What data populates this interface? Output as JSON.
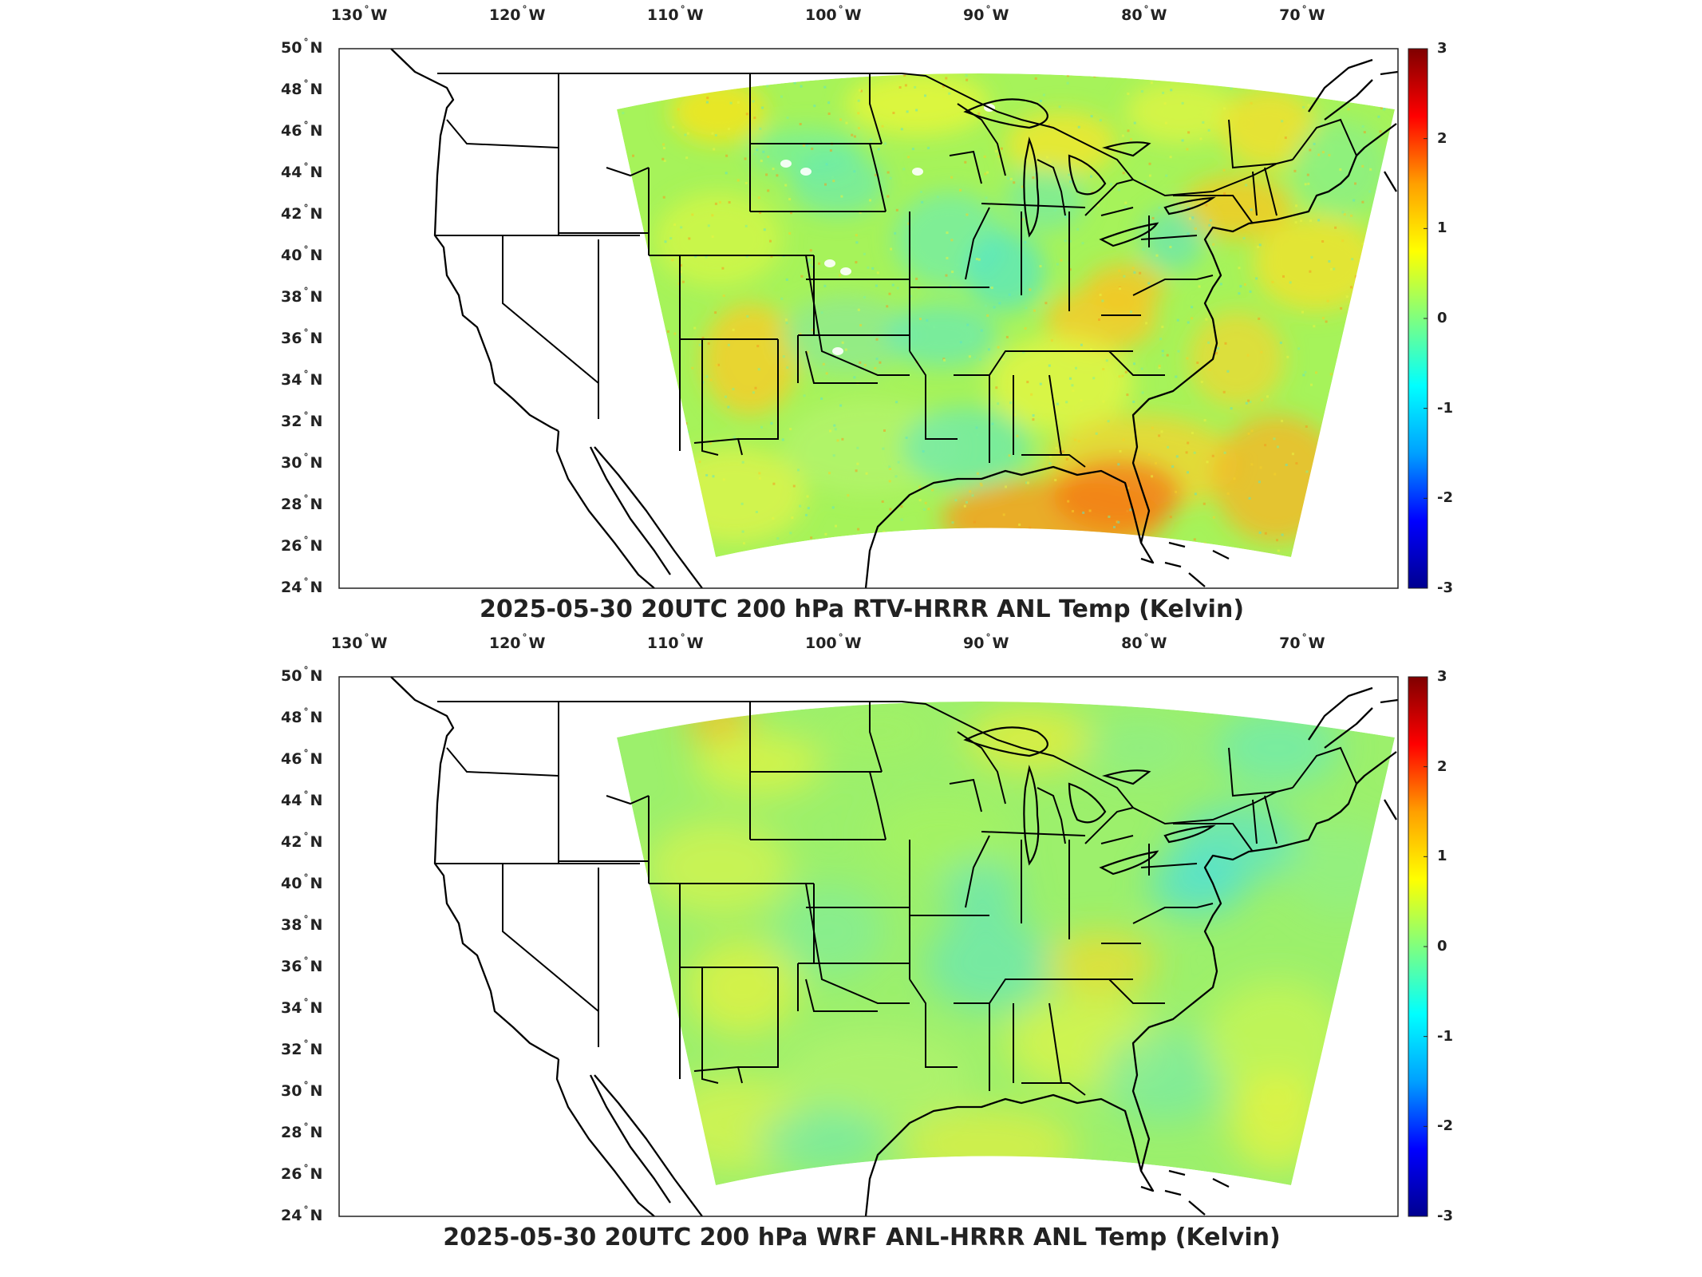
{
  "figure": {
    "panels": [
      {
        "title": "2025-05-30 20UTC 200 hPa RTV-HRRR ANL Temp (Kelvin)",
        "variant": "rtv"
      },
      {
        "title": "2025-05-30 20UTC 200 hPa WRF ANL-HRRR ANL Temp (Kelvin)",
        "variant": "wrf"
      }
    ],
    "lon_labels": [
      "130",
      "120",
      "110",
      "100",
      "90",
      "80",
      "70"
    ],
    "lon_hemisphere": "W",
    "lat_labels": [
      "50",
      "48",
      "46",
      "44",
      "42",
      "40",
      "38",
      "36",
      "34",
      "32",
      "30",
      "28",
      "26",
      "24"
    ],
    "lat_hemisphere": "N",
    "colorbar_ticks": [
      "3",
      "2",
      "1",
      "0",
      "-1",
      "-2",
      "-3"
    ],
    "colormap": [
      "#00008f",
      "#0000ff",
      "#00a0ff",
      "#00ffff",
      "#7fff7f",
      "#ffff00",
      "#ff9f00",
      "#ff0000",
      "#7f0000"
    ]
  },
  "chart_data": [
    {
      "type": "heatmap",
      "title": "2025-05-30 20UTC 200 hPa RTV-HRRR ANL Temp (Kelvin)",
      "x_axis": "longitude",
      "y_axis": "latitude",
      "xlim": [
        -131,
        -64
      ],
      "ylim": [
        24,
        50
      ],
      "color_range": [
        -3,
        3
      ],
      "colorbar_ticks": [
        3,
        2,
        1,
        0,
        -1,
        -2,
        -3
      ],
      "dominant_values": {
        "background": 0.3,
        "warm_areas_southeast": 1.4,
        "cool_areas": -0.6
      }
    },
    {
      "type": "heatmap",
      "title": "2025-05-30 20UTC 200 hPa WRF ANL-HRRR ANL Temp (Kelvin)",
      "x_axis": "longitude",
      "y_axis": "latitude",
      "xlim": [
        -131,
        -64
      ],
      "ylim": [
        24,
        50
      ],
      "color_range": [
        -3,
        3
      ],
      "colorbar_ticks": [
        3,
        2,
        1,
        0,
        -1,
        -2,
        -3
      ],
      "dominant_values": {
        "background": 0.2,
        "warm_areas": 0.8,
        "cool_areas": -0.6
      }
    }
  ]
}
